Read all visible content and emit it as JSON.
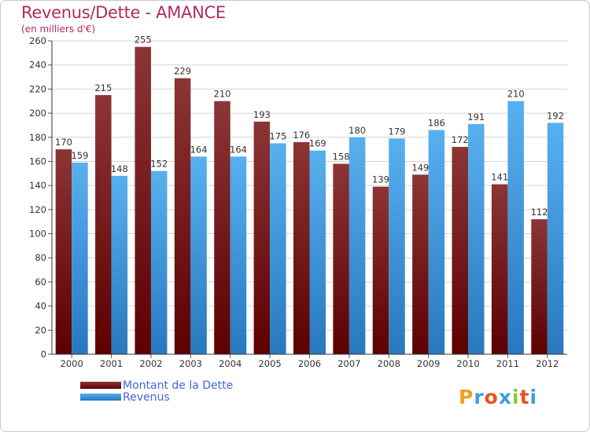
{
  "colors": {
    "title": "#b22a5e",
    "dette_top": "#8c3535",
    "dette_bottom": "#5c0000",
    "revenus_top": "#58b0ee",
    "revenus_bottom": "#2878be",
    "legend_text": "#4466dd",
    "grid": "#d4d4d4"
  },
  "logo": {
    "text": "Proxiti",
    "letter_colors": [
      "#f0a020",
      "#3aa0d8",
      "#e8531e",
      "#3aa0d8",
      "#8cc63f",
      "#e8531e",
      "#3aa0d8"
    ]
  },
  "chart_data": {
    "type": "bar",
    "title": "Revenus/Dette - AMANCE",
    "subtitle": "(en milliers d'€)",
    "xlabel": "",
    "ylabel": "",
    "categories": [
      "2000",
      "2001",
      "2002",
      "2003",
      "2004",
      "2005",
      "2006",
      "2007",
      "2008",
      "2009",
      "2010",
      "2011",
      "2012"
    ],
    "series": [
      {
        "name": "Montant de la Dette",
        "values": [
          170,
          215,
          255,
          229,
          210,
          193,
          176,
          158,
          139,
          149,
          172,
          141,
          112
        ]
      },
      {
        "name": "Revenus",
        "values": [
          159,
          148,
          152,
          164,
          164,
          175,
          169,
          180,
          179,
          186,
          191,
          210,
          192
        ]
      }
    ],
    "ylim": [
      0,
      260
    ],
    "yticks": [
      0,
      20,
      40,
      60,
      80,
      100,
      120,
      140,
      160,
      180,
      200,
      220,
      240,
      260
    ],
    "grid": true,
    "legend_position": "bottom-left"
  }
}
